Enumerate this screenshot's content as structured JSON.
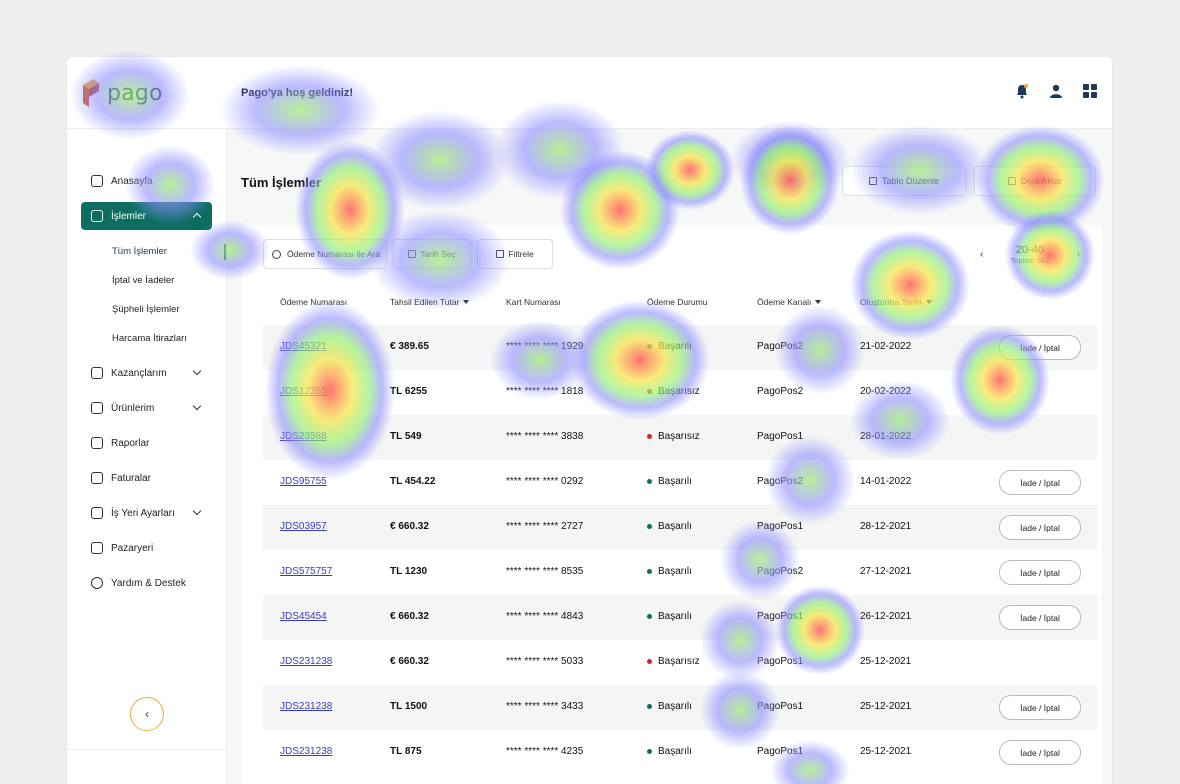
{
  "app": {
    "name": "pago",
    "welcome": "Pago'ya hoş geldiniz!"
  },
  "topbar": {
    "icons": [
      "bell-icon",
      "user-icon",
      "grid-icon"
    ]
  },
  "sidebar": {
    "items": [
      {
        "label": "Anasayfa",
        "icon": "home-icon"
      },
      {
        "label": "İşlemler",
        "icon": "transactions-icon"
      },
      {
        "label": "Kazançlarım",
        "icon": "earnings-icon"
      },
      {
        "label": "Ürünlerim",
        "icon": "products-icon"
      },
      {
        "label": "Raporlar",
        "icon": "reports-icon"
      },
      {
        "label": "Faturalar",
        "icon": "invoices-icon"
      },
      {
        "label": "İş Yeri Ayarları",
        "icon": "settings-icon"
      },
      {
        "label": "Pazaryeri",
        "icon": "marketplace-icon"
      },
      {
        "label": "Yardım & Destek",
        "icon": "help-icon"
      }
    ],
    "sub_items": [
      "Tüm İşlemler",
      "İptal ve İadeler",
      "Şüpheli İşlemler",
      "Harcama İtirazları"
    ],
    "collapse_glyph": "‹"
  },
  "main": {
    "title": "Tüm İşlemler",
    "buttons": {
      "edit_table": "Tablo Düzenle",
      "export": "Dışa Aktar"
    },
    "search": {
      "placeholder": "Ödeme Numarası ile Ara"
    },
    "date_filter": "Tarih Seç",
    "filter": "Filtrele",
    "pager": {
      "range": "20-40",
      "total": "Toplam 542",
      "prev": "‹",
      "next": "›"
    },
    "columns": [
      "Ödeme Numarası",
      "Tahsil Edilen Tutar",
      "Kart Numarası",
      "Ödeme Durumu",
      "Ödeme Kanalı",
      "Oluşturma Tarihi"
    ],
    "rows": [
      {
        "id": "JDS45321",
        "amount": "€ 389.65",
        "card": "**** **** **** 1929",
        "status": "Başarılı",
        "channel": "PagoPos2",
        "date": "21-02-2022",
        "action": "İade / İptal"
      },
      {
        "id": "JDS12355",
        "amount": "TL 6255",
        "card": "**** **** **** 1818",
        "status": "Başarısız",
        "channel": "PagoPos2",
        "date": "20-02-2022",
        "action": ""
      },
      {
        "id": "JDS23588",
        "amount": "TL 549",
        "card": "**** **** **** 3838",
        "status": "Başarısız",
        "channel": "PagoPos1",
        "date": "28-01-2022",
        "action": ""
      },
      {
        "id": "JDS95755",
        "amount": "TL 454.22",
        "card": "**** **** **** 0292",
        "status": "Başarılı",
        "channel": "PagoPos2",
        "date": "14-01-2022",
        "action": "İade / İptal"
      },
      {
        "id": "JDS03957",
        "amount": "€ 660.32",
        "card": "**** **** **** 2727",
        "status": "Başarılı",
        "channel": "PagoPos1",
        "date": "28-12-2021",
        "action": "İade / İptal"
      },
      {
        "id": "JDS575757",
        "amount": "TL 1230",
        "card": "**** **** **** 8535",
        "status": "Başarılı",
        "channel": "PagoPos2",
        "date": "27-12-2021",
        "action": "İade / İptal"
      },
      {
        "id": "JDS45454",
        "amount": "€ 660.32",
        "card": "**** **** **** 4843",
        "status": "Başarılı",
        "channel": "PagoPos1",
        "date": "26-12-2021",
        "action": "İade / İptal"
      },
      {
        "id": "JDS231238",
        "amount": "€ 660.32",
        "card": "**** **** **** 5033",
        "status": "Başarısız",
        "channel": "PagoPos1",
        "date": "25-12-2021",
        "action": ""
      },
      {
        "id": "JDS231238",
        "amount": "TL 1500",
        "card": "**** **** **** 3433",
        "status": "Başarılı",
        "channel": "PagoPos1",
        "date": "25-12-2021",
        "action": "İade / İptal"
      },
      {
        "id": "JDS231238",
        "amount": "TL 875",
        "card": "**** **** **** 4235",
        "status": "Başarılı",
        "channel": "PagoPos1",
        "date": "25-12-2021",
        "action": "İade / İptal"
      }
    ]
  },
  "colors": {
    "primary": "#0b6e60",
    "success": "#0b6e60",
    "fail": "#c62828",
    "link": "#3b3bbf",
    "accent": "#f2a53a",
    "heat_cold": "#8c8cff",
    "heat_mid": "#c8f04a",
    "heat_hot": "#ff5a5a"
  }
}
